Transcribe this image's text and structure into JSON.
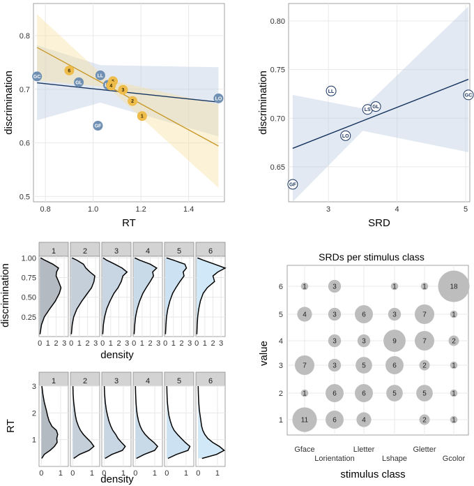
{
  "chart_data": [
    {
      "id": "rt_scatter",
      "type": "scatter",
      "xlabel": "RT",
      "ylabel": "discrimination",
      "xlim": [
        0.75,
        1.55
      ],
      "ylim": [
        0.49,
        0.86
      ],
      "xticks": [
        "0.8",
        "1.0",
        "1.2",
        "1.4"
      ],
      "yticks": [
        "0.5",
        "0.6",
        "0.7",
        "0.8"
      ],
      "grid": true,
      "series": [
        {
          "name": "stimulus class",
          "color": "#6f8fb3",
          "points": [
            {
              "label": "GC",
              "x": 0.765,
              "y": 0.724
            },
            {
              "label": "GL",
              "x": 0.94,
              "y": 0.713
            },
            {
              "label": "LL",
              "x": 1.03,
              "y": 0.726
            },
            {
              "label": "LS",
              "x": 1.062,
              "y": 0.708
            },
            {
              "label": "GF",
              "x": 1.02,
              "y": 0.632
            },
            {
              "label": "LO",
              "x": 1.525,
              "y": 0.683
            }
          ],
          "fit": {
            "x": [
              0.765,
              1.525
            ],
            "y": [
              0.712,
              0.676
            ]
          },
          "band": {
            "x": [
              0.765,
              1.03,
              1.525
            ],
            "lower": [
              0.642,
              0.675,
              0.612
            ],
            "upper": [
              0.782,
              0.745,
              0.741
            ]
          }
        },
        {
          "name": "value",
          "color": "#eebc4b",
          "points": [
            {
              "label": "6",
              "x": 0.9,
              "y": 0.735
            },
            {
              "label": "5",
              "x": 1.083,
              "y": 0.715
            },
            {
              "label": "4",
              "x": 1.075,
              "y": 0.707
            },
            {
              "label": "3",
              "x": 1.125,
              "y": 0.699
            },
            {
              "label": "2",
              "x": 1.165,
              "y": 0.678
            },
            {
              "label": "1",
              "x": 1.205,
              "y": 0.65
            }
          ],
          "fit": {
            "x": [
              0.765,
              1.525
            ],
            "y": [
              0.778,
              0.594
            ]
          },
          "band": {
            "x": [
              0.765,
              1.06,
              1.525
            ],
            "lower": [
              0.716,
              0.704,
              0.516
            ],
            "upper": [
              0.84,
              0.718,
              0.672
            ]
          }
        }
      ]
    },
    {
      "id": "srd_scatter",
      "type": "scatter",
      "xlabel": "SRD",
      "ylabel": "discrimination",
      "xlim": [
        2.42,
        5.06
      ],
      "ylim": [
        0.614,
        0.818
      ],
      "xticks": [
        "3",
        "4",
        "5"
      ],
      "yticks": [
        "0.65",
        "0.70",
        "0.75",
        "0.80"
      ],
      "grid": true,
      "points": [
        {
          "label": "GF",
          "x": 2.48,
          "y": 0.632
        },
        {
          "label": "LL",
          "x": 3.04,
          "y": 0.728
        },
        {
          "label": "LO",
          "x": 3.25,
          "y": 0.682
        },
        {
          "label": "LS",
          "x": 3.57,
          "y": 0.709
        },
        {
          "label": "GL",
          "x": 3.69,
          "y": 0.712
        },
        {
          "label": "GC",
          "x": 5.04,
          "y": 0.724
        }
      ],
      "fit": {
        "x": [
          2.48,
          5.04
        ],
        "y": [
          0.669,
          0.74
        ]
      },
      "band": {
        "x": [
          2.48,
          3.5,
          5.04
        ],
        "lower": [
          0.614,
          0.687,
          0.665
        ],
        "upper": [
          0.724,
          0.71,
          0.815
        ]
      }
    },
    {
      "id": "discrimination_density",
      "type": "area",
      "facets": [
        "1",
        "2",
        "3",
        "4",
        "5",
        "6"
      ],
      "fills": [
        "#b3bac2",
        "#c5cfd9",
        "#c8d5e2",
        "#c8dae8",
        "#cce2f2",
        "#d0e8f7"
      ],
      "xlabel": "density",
      "ylabel": "discrimination",
      "xlim": [
        -0.1,
        3.5
      ],
      "ylim": [
        0.0,
        1.02
      ],
      "xticks": [
        "0",
        "1",
        "2",
        "3"
      ],
      "yticks": [
        "0.25",
        "0.50",
        "0.75",
        "1.00"
      ],
      "curve_y": [
        0.03,
        0.15,
        0.25,
        0.35,
        0.45,
        0.55,
        0.62,
        0.7,
        0.77,
        0.82,
        0.87,
        0.92,
        0.97,
        1.0
      ],
      "curves": [
        [
          0.02,
          0.2,
          0.55,
          1.2,
          1.9,
          2.4,
          2.6,
          2.3,
          2.0,
          2.05,
          2.3,
          1.6,
          0.6,
          0.1
        ],
        [
          0.02,
          0.12,
          0.3,
          0.7,
          1.3,
          2.0,
          2.5,
          2.8,
          2.9,
          2.3,
          1.8,
          1.5,
          0.7,
          0.1
        ],
        [
          0.02,
          0.1,
          0.25,
          0.5,
          0.9,
          1.4,
          1.9,
          2.3,
          2.5,
          3.0,
          2.4,
          1.5,
          0.5,
          0.05
        ],
        [
          0.02,
          0.1,
          0.2,
          0.4,
          0.7,
          1.1,
          1.5,
          2.0,
          2.4,
          2.3,
          2.8,
          2.0,
          0.7,
          0.1
        ],
        [
          0.02,
          0.08,
          0.15,
          0.3,
          0.55,
          0.9,
          1.3,
          1.8,
          2.3,
          2.2,
          2.6,
          2.4,
          1.0,
          0.15
        ],
        [
          0.02,
          0.06,
          0.12,
          0.25,
          0.45,
          0.8,
          1.3,
          2.2,
          2.0,
          2.6,
          3.5,
          2.2,
          0.8,
          0.1
        ]
      ]
    },
    {
      "id": "rt_density",
      "type": "area",
      "facets": [
        "1",
        "2",
        "3",
        "4",
        "5",
        "6"
      ],
      "fills": [
        "#b3bac2",
        "#c5cfd9",
        "#c8d5e2",
        "#c8dae8",
        "#cce2f2",
        "#d0e8f7"
      ],
      "xlabel": "density",
      "ylabel": "RT",
      "xlim": [
        -0.12,
        1.4
      ],
      "ylim": [
        0.0,
        3.0
      ],
      "xticks": [
        "0",
        "1"
      ],
      "yticks": [
        "1",
        "2",
        "3"
      ],
      "curve_y": [
        0.3,
        0.45,
        0.6,
        0.75,
        0.9,
        1.05,
        1.2,
        1.35,
        1.5,
        1.7,
        1.9,
        2.1,
        2.4,
        2.7,
        3.0
      ],
      "curves": [
        [
          0.02,
          0.15,
          0.45,
          0.68,
          0.82,
          0.8,
          0.85,
          0.78,
          0.55,
          0.4,
          0.32,
          0.26,
          0.15,
          0.08,
          0.03
        ],
        [
          0.05,
          0.35,
          0.85,
          1.1,
          0.95,
          0.75,
          0.55,
          0.4,
          0.3,
          0.2,
          0.14,
          0.1,
          0.05,
          0.02,
          0.01
        ],
        [
          0.05,
          0.4,
          0.95,
          1.1,
          0.9,
          0.72,
          0.6,
          0.45,
          0.35,
          0.25,
          0.18,
          0.12,
          0.06,
          0.03,
          0.01
        ],
        [
          0.05,
          0.45,
          1.0,
          1.15,
          0.95,
          0.7,
          0.5,
          0.35,
          0.25,
          0.16,
          0.1,
          0.06,
          0.03,
          0.01,
          0.0
        ],
        [
          0.06,
          0.5,
          1.1,
          1.2,
          0.95,
          0.75,
          0.55,
          0.38,
          0.27,
          0.18,
          0.11,
          0.07,
          0.03,
          0.01,
          0.0
        ],
        [
          0.2,
          0.95,
          1.35,
          1.1,
          0.75,
          0.5,
          0.34,
          0.24,
          0.18,
          0.14,
          0.1,
          0.06,
          0.03,
          0.01,
          0.0
        ]
      ]
    },
    {
      "id": "srd_bubbles",
      "type": "scatter",
      "title": "SRDs per stimulus class",
      "xlabel": "stimulus class",
      "ylabel": "value",
      "categories": [
        "Gface",
        "Lorientation",
        "Lletter",
        "Lshape",
        "Gletter",
        "Gcolor"
      ],
      "yticks": [
        "1",
        "2",
        "3",
        "4",
        "5",
        "6"
      ],
      "points": [
        {
          "cat": "Gface",
          "v": 6,
          "n": 1
        },
        {
          "cat": "Lorientation",
          "v": 6,
          "n": 3
        },
        {
          "cat": "Lshape",
          "v": 6,
          "n": 1
        },
        {
          "cat": "Gletter",
          "v": 6,
          "n": 1
        },
        {
          "cat": "Gcolor",
          "v": 6,
          "n": 18
        },
        {
          "cat": "Gface",
          "v": 5,
          "n": 4
        },
        {
          "cat": "Lorientation",
          "v": 5,
          "n": 3
        },
        {
          "cat": "Lletter",
          "v": 5,
          "n": 6
        },
        {
          "cat": "Lshape",
          "v": 5,
          "n": 3
        },
        {
          "cat": "Gletter",
          "v": 5,
          "n": 7
        },
        {
          "cat": "Gcolor",
          "v": 5,
          "n": 1
        },
        {
          "cat": "Lorientation",
          "v": 4,
          "n": 3
        },
        {
          "cat": "Lletter",
          "v": 4,
          "n": 3
        },
        {
          "cat": "Lshape",
          "v": 4,
          "n": 9
        },
        {
          "cat": "Gletter",
          "v": 4,
          "n": 7
        },
        {
          "cat": "Gcolor",
          "v": 4,
          "n": 2
        },
        {
          "cat": "Gface",
          "v": 3,
          "n": 7
        },
        {
          "cat": "Lorientation",
          "v": 3,
          "n": 3
        },
        {
          "cat": "Lletter",
          "v": 3,
          "n": 5
        },
        {
          "cat": "Lshape",
          "v": 3,
          "n": 6
        },
        {
          "cat": "Gletter",
          "v": 3,
          "n": 2
        },
        {
          "cat": "Gcolor",
          "v": 3,
          "n": 1
        },
        {
          "cat": "Gface",
          "v": 2,
          "n": 1
        },
        {
          "cat": "Lorientation",
          "v": 2,
          "n": 6
        },
        {
          "cat": "Lletter",
          "v": 2,
          "n": 6
        },
        {
          "cat": "Lshape",
          "v": 2,
          "n": 5
        },
        {
          "cat": "Gletter",
          "v": 2,
          "n": 5
        },
        {
          "cat": "Gcolor",
          "v": 2,
          "n": 1
        },
        {
          "cat": "Gface",
          "v": 1,
          "n": 11
        },
        {
          "cat": "Lorientation",
          "v": 1,
          "n": 6
        },
        {
          "cat": "Lletter",
          "v": 1,
          "n": 4
        },
        {
          "cat": "Gletter",
          "v": 1,
          "n": 2
        },
        {
          "cat": "Gcolor",
          "v": 1,
          "n": 1
        }
      ]
    }
  ]
}
